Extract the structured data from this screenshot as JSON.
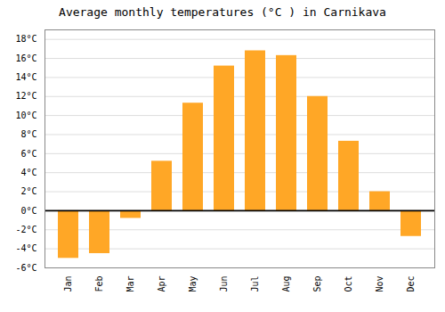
{
  "chart_data": {
    "type": "bar",
    "title": "Average monthly temperatures (°C ) in Carnikava",
    "categories": [
      "Jan",
      "Feb",
      "Mar",
      "Apr",
      "May",
      "Jun",
      "Jul",
      "Aug",
      "Sep",
      "Oct",
      "Nov",
      "Dec"
    ],
    "values": [
      -5.0,
      -4.5,
      -0.8,
      5.2,
      11.3,
      15.2,
      16.8,
      16.3,
      12.0,
      7.3,
      2.0,
      -2.7
    ],
    "color": "#FFA726",
    "ylim": [
      -6,
      19
    ],
    "yticks": [
      {
        "value": -6,
        "label": "-6°C"
      },
      {
        "value": -4,
        "label": "-4°C"
      },
      {
        "value": -2,
        "label": "-2°C"
      },
      {
        "value": 0,
        "label": "0°C"
      },
      {
        "value": 2,
        "label": "2°C"
      },
      {
        "value": 4,
        "label": "4°C"
      },
      {
        "value": 6,
        "label": "6°C"
      },
      {
        "value": 8,
        "label": "8°C"
      },
      {
        "value": 10,
        "label": "10°C"
      },
      {
        "value": 12,
        "label": "12°C"
      },
      {
        "value": 14,
        "label": "14°C"
      },
      {
        "value": 16,
        "label": "16°C"
      },
      {
        "value": 18,
        "label": "18°C"
      }
    ],
    "grid": true
  }
}
